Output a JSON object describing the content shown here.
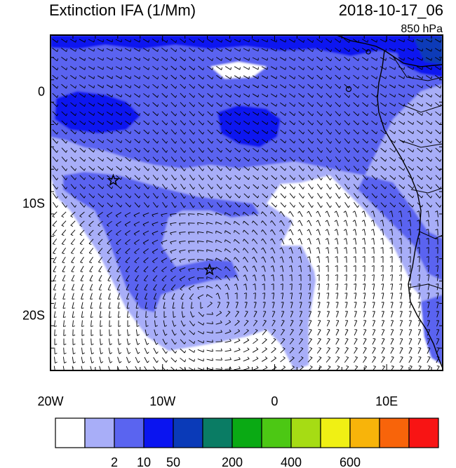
{
  "title": "Extinction IFA (1/Mm)",
  "datetime": "2018-10-17_06",
  "level": "850 hPa",
  "x_ticks": [
    {
      "label": "20W",
      "lon": -20
    },
    {
      "label": "10W",
      "lon": -10
    },
    {
      "label": "0",
      "lon": 0
    },
    {
      "label": "10E",
      "lon": 10
    }
  ],
  "y_ticks": [
    {
      "label": "0",
      "lat": 0
    },
    {
      "label": "10S",
      "lat": -10
    },
    {
      "label": "20S",
      "lat": -20
    }
  ],
  "extent": {
    "lon": [
      -20,
      15
    ],
    "lat": [
      -25,
      5
    ]
  },
  "colorbar": {
    "colors": [
      "#ffffff",
      "#a8aef8",
      "#5a64f0",
      "#0a14f0",
      "#0a3ab8",
      "#0a7c64",
      "#0aaa14",
      "#4cc814",
      "#a6dc14",
      "#f0f014",
      "#f8b40a",
      "#f8640a",
      "#f81414"
    ],
    "labels": [
      {
        "text": "2",
        "after_index": 1
      },
      {
        "text": "10",
        "after_index": 2
      },
      {
        "text": "50",
        "after_index": 3
      },
      {
        "text": "200",
        "after_index": 5
      },
      {
        "text": "400",
        "after_index": 7
      },
      {
        "text": "600",
        "after_index": 9
      }
    ]
  },
  "markers": [
    {
      "name": "star",
      "lon": -14.4,
      "lat": -8.0
    },
    {
      "name": "star",
      "lon": -5.8,
      "lat": -16.0
    }
  ]
}
